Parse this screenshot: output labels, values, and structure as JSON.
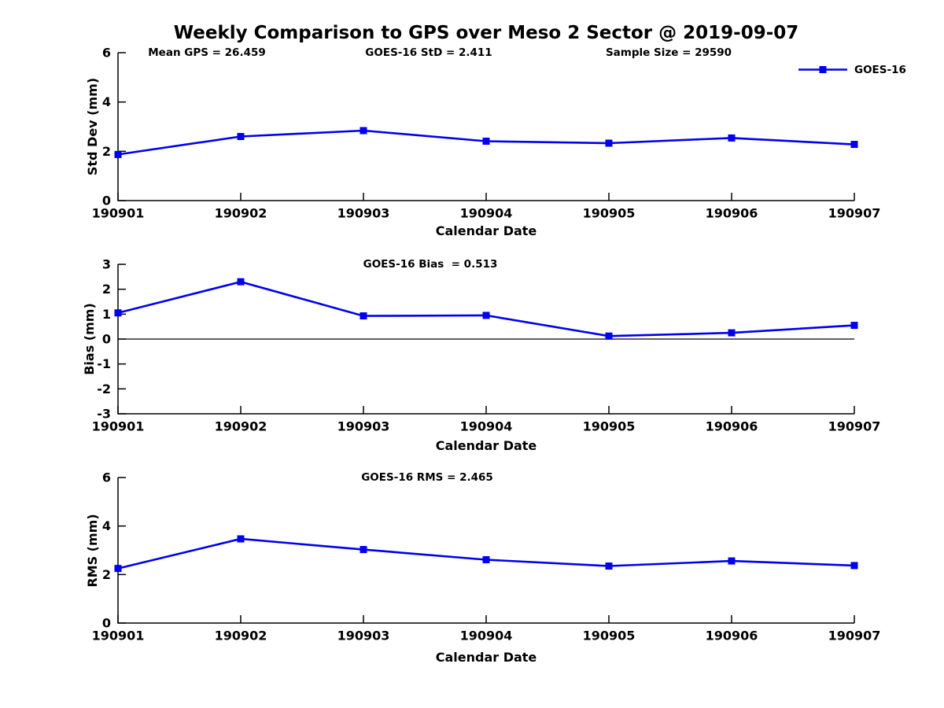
{
  "title": "Weekly Comparison to GPS over Meso 2 Sector @ 2019-09-07",
  "accent_color": "#0000EE",
  "axis_color": "#000000",
  "legend": {
    "label": "GOES-16"
  },
  "chart_data": [
    {
      "type": "line",
      "panel": "std-dev",
      "annotations": [
        "Mean GPS = 26.459",
        "GOES-16 StD = 2.411",
        "Sample Size = 29590"
      ],
      "xlabel": "Calendar Date",
      "ylabel": "Std Dev (mm)",
      "ylim": [
        0,
        6
      ],
      "yticks": [
        0,
        2,
        4,
        6
      ],
      "grid": false,
      "zero_line": false,
      "legend_position": "top-right",
      "categories": [
        "190901",
        "190902",
        "190903",
        "190904",
        "190905",
        "190906",
        "190907"
      ],
      "series": [
        {
          "name": "GOES-16",
          "values": [
            1.87,
            2.6,
            2.84,
            2.41,
            2.33,
            2.54,
            2.28
          ]
        }
      ]
    },
    {
      "type": "line",
      "panel": "bias",
      "annotations": [
        "GOES-16 Bias  = 0.513"
      ],
      "xlabel": "Calendar Date",
      "ylabel": "Bias (mm)",
      "ylim": [
        -3,
        3
      ],
      "yticks": [
        -3,
        -2,
        -1,
        0,
        1,
        2,
        3
      ],
      "grid": false,
      "zero_line": true,
      "categories": [
        "190901",
        "190902",
        "190903",
        "190904",
        "190905",
        "190906",
        "190907"
      ],
      "series": [
        {
          "name": "GOES-16",
          "values": [
            1.05,
            2.3,
            0.93,
            0.95,
            0.12,
            0.25,
            0.55
          ]
        }
      ]
    },
    {
      "type": "line",
      "panel": "rms",
      "annotations": [
        "GOES-16 RMS = 2.465"
      ],
      "xlabel": "Calendar Date",
      "ylabel": "RMS (mm)",
      "ylim": [
        0,
        6
      ],
      "yticks": [
        0,
        2,
        4,
        6
      ],
      "grid": false,
      "zero_line": false,
      "categories": [
        "190901",
        "190902",
        "190903",
        "190904",
        "190905",
        "190906",
        "190907"
      ],
      "series": [
        {
          "name": "GOES-16",
          "values": [
            2.25,
            3.47,
            3.03,
            2.61,
            2.35,
            2.56,
            2.37
          ]
        }
      ]
    }
  ]
}
